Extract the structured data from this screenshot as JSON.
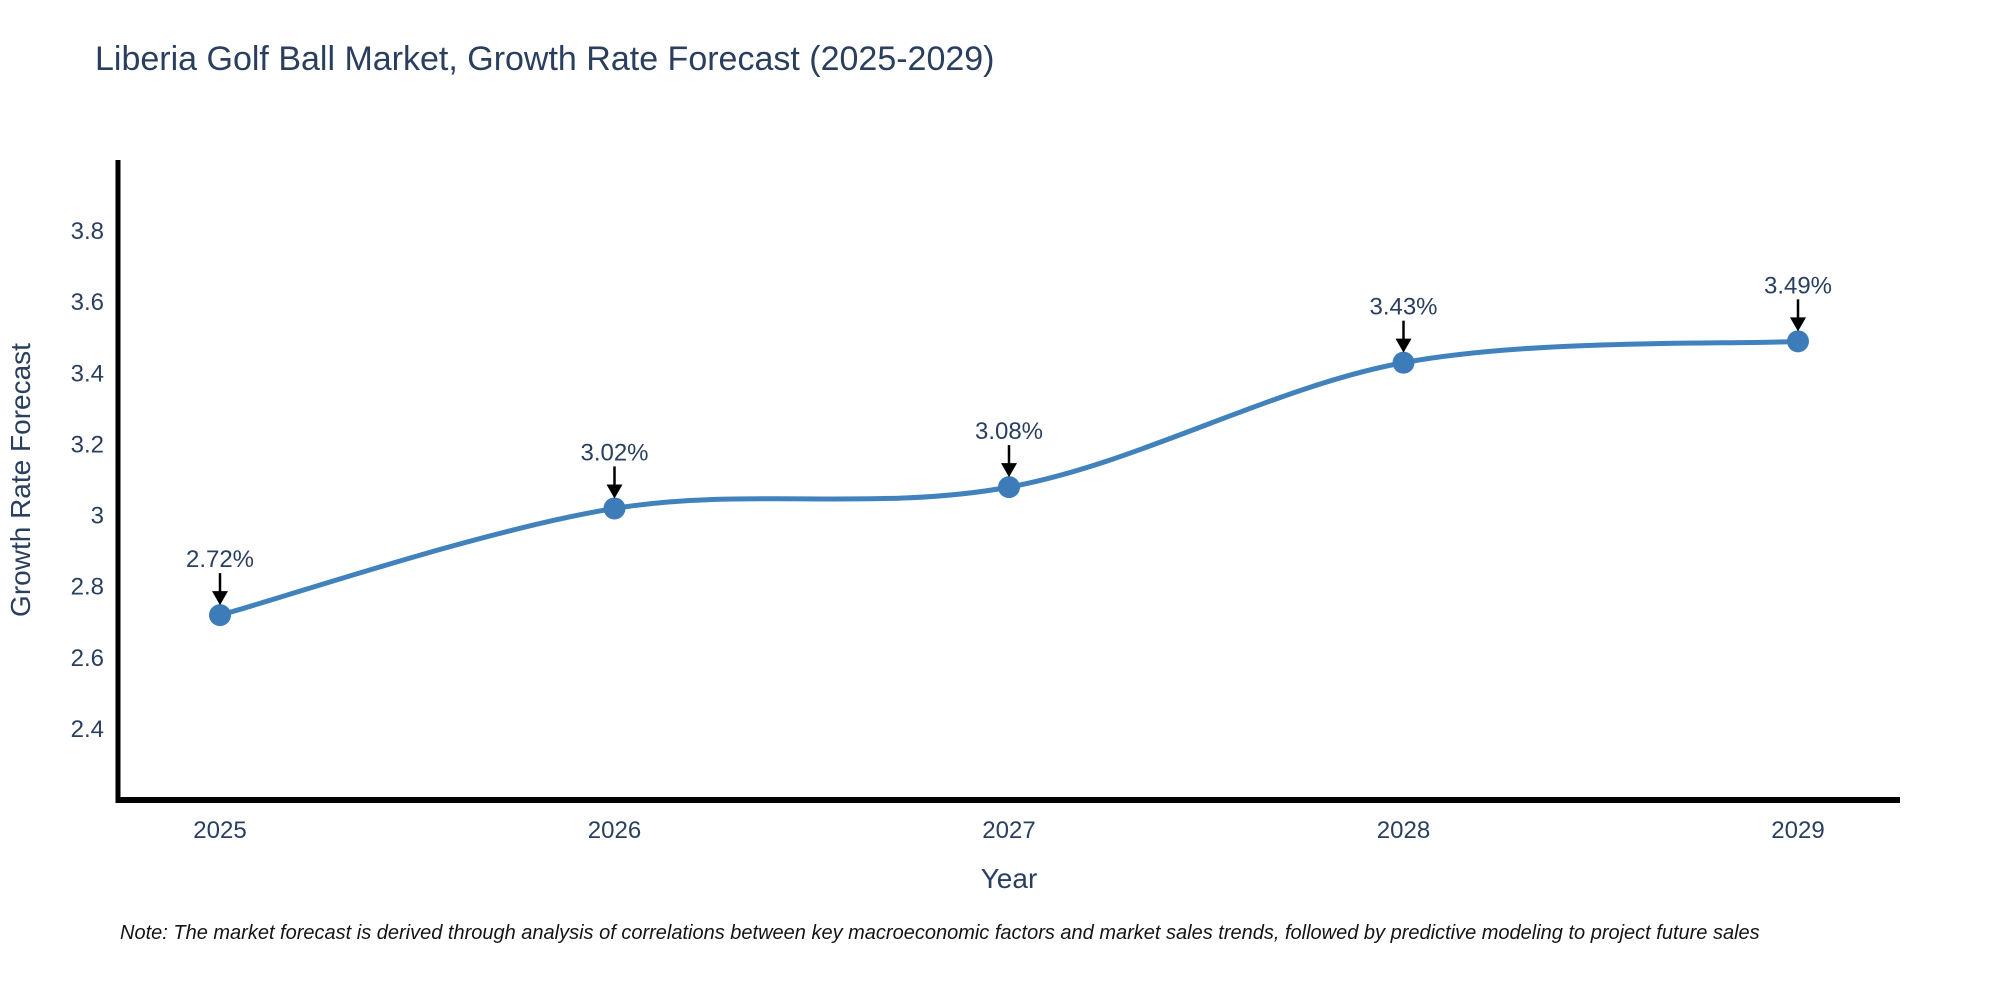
{
  "chart_data": {
    "type": "line",
    "title": "Liberia Golf Ball Market, Growth Rate Forecast (2025-2029)",
    "xlabel": "Year",
    "ylabel": "Growth Rate Forecast",
    "categories": [
      "2025",
      "2026",
      "2027",
      "2028",
      "2029"
    ],
    "values": [
      2.72,
      3.02,
      3.08,
      3.43,
      3.49
    ],
    "point_labels": [
      "2.72%",
      "3.02%",
      "3.08%",
      "3.43%",
      "3.49%"
    ],
    "y_ticks": [
      2.4,
      2.6,
      2.8,
      3,
      3.2,
      3.4,
      3.6,
      3.8
    ],
    "ylim": [
      2.2,
      4.0
    ],
    "line_shape": "spline",
    "grid": false,
    "legend": "none",
    "colors": {
      "line": "#4182bd",
      "marker": "#3d7cb8",
      "text": "#2a3f5f",
      "axis": "#000000",
      "arrow": "#000000"
    }
  },
  "note": "Note: The market forecast is derived through analysis of correlations between key macroeconomic factors and market sales trends, followed by predictive modeling to project future sales"
}
